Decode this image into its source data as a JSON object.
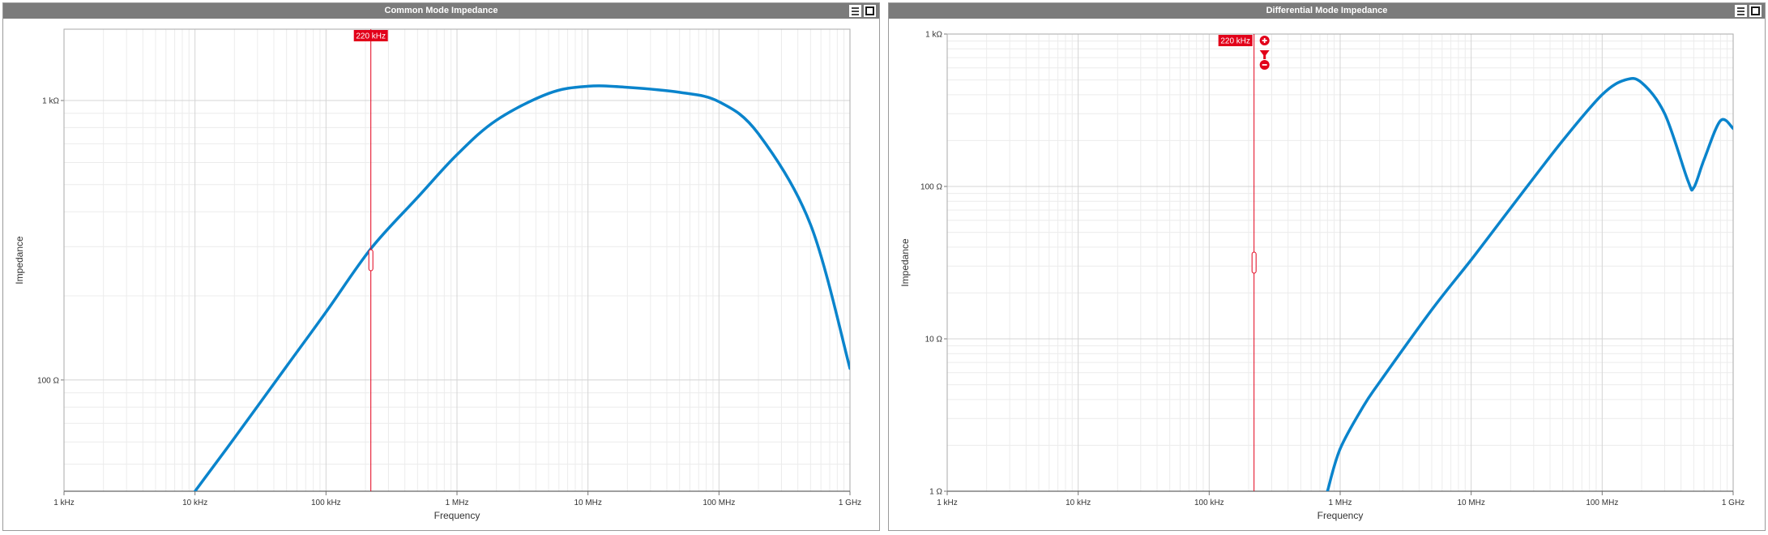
{
  "chart_data": [
    {
      "type": "line",
      "title": "Common Mode Impedance",
      "xlabel": "Frequency",
      "ylabel": "Impedance",
      "xscale": "log",
      "yscale": "log",
      "xlim_hz": [
        1000,
        1000000000
      ],
      "ylim_ohm": [
        40,
        1800
      ],
      "grid": true,
      "xticks": [
        {
          "value": 1000,
          "label": "1 kHz"
        },
        {
          "value": 10000,
          "label": "10 kHz"
        },
        {
          "value": 100000,
          "label": "100 kHz"
        },
        {
          "value": 1000000,
          "label": "1 MHz"
        },
        {
          "value": 10000000,
          "label": "10 MHz"
        },
        {
          "value": 100000000,
          "label": "100 MHz"
        },
        {
          "value": 1000000000,
          "label": "1 GHz"
        }
      ],
      "yticks": [
        {
          "value": 100,
          "label": "100 Ω"
        },
        {
          "value": 1000,
          "label": "1 kΩ"
        }
      ],
      "series": [
        {
          "color": "#0a84cc",
          "x": [
            10000,
            20000,
            50000,
            100000,
            220000,
            500000,
            1000000,
            2000000,
            5000000,
            10000000,
            20000000,
            50000000,
            100000000,
            200000000,
            500000000,
            1000000000
          ],
          "y": [
            40,
            62,
            112,
            175,
            295,
            450,
            640,
            850,
            1060,
            1125,
            1115,
            1070,
            990,
            760,
            360,
            110
          ]
        }
      ],
      "cursor": {
        "value": 220000,
        "label": "220 kHz",
        "color": "#e2001a"
      }
    },
    {
      "type": "line",
      "title": "Differential Mode Impedance",
      "xlabel": "Frequency",
      "ylabel": "Impedance",
      "xscale": "log",
      "yscale": "log",
      "xlim_hz": [
        1000,
        1000000000
      ],
      "ylim_ohm": [
        1,
        1000
      ],
      "grid": true,
      "xticks": [
        {
          "value": 1000,
          "label": "1 kHz"
        },
        {
          "value": 10000,
          "label": "10 kHz"
        },
        {
          "value": 100000,
          "label": "100 kHz"
        },
        {
          "value": 1000000,
          "label": "1 MHz"
        },
        {
          "value": 10000000,
          "label": "10 MHz"
        },
        {
          "value": 100000000,
          "label": "100 MHz"
        },
        {
          "value": 1000000000,
          "label": "1 GHz"
        }
      ],
      "yticks": [
        {
          "value": 1,
          "label": "1 Ω"
        },
        {
          "value": 10,
          "label": "10 Ω"
        },
        {
          "value": 100,
          "label": "100 Ω"
        },
        {
          "value": 1000,
          "label": "1 kΩ"
        }
      ],
      "series": [
        {
          "color": "#0a84cc",
          "x": [
            800000,
            1000000,
            1500000,
            2000000,
            5000000,
            10000000,
            20000000,
            50000000,
            100000000,
            150000000,
            200000000,
            300000000,
            450000000,
            500000000,
            600000000,
            800000000,
            1000000000
          ],
          "y": [
            1,
            1.9,
            3.6,
            5.2,
            15.5,
            33,
            72,
            200,
            400,
            500,
            480,
            300,
            110,
            98,
            150,
            270,
            240
          ]
        }
      ],
      "cursor": {
        "value": 220000,
        "label": "220 kHz",
        "color": "#e2001a"
      }
    }
  ]
}
